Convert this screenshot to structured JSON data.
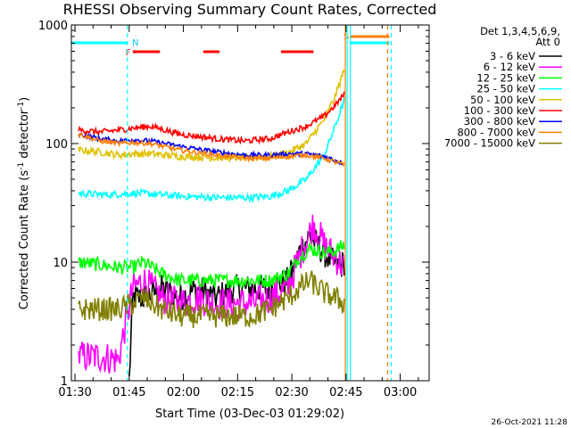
{
  "chart_data": {
    "type": "line",
    "title": "RHESSI Observing Summary Count Rates, Corrected",
    "xlabel": "Start Time (03-Dec-03 01:29:02)",
    "ylabel_main": "Corrected Count Rate (s",
    "ylabel_sup1": "-1",
    "ylabel_mid": " detector",
    "ylabel_sup2": "-1",
    "ylabel_end": ")",
    "yscale": "log",
    "ylim": [
      1,
      1000
    ],
    "xlim_minutes": [
      0,
      99
    ],
    "y_ticks": [
      {
        "value": 1,
        "label": "1"
      },
      {
        "value": 10,
        "label": "10"
      },
      {
        "value": 100,
        "label": "100"
      },
      {
        "value": 1000,
        "label": "1000"
      }
    ],
    "x_ticks": [
      {
        "minute": 1,
        "label": "01:30"
      },
      {
        "minute": 16,
        "label": "01:45"
      },
      {
        "minute": 31,
        "label": "02:00"
      },
      {
        "minute": 46,
        "label": "02:15"
      },
      {
        "minute": 61,
        "label": "02:30"
      },
      {
        "minute": 76,
        "label": "02:45"
      },
      {
        "minute": 91,
        "label": "03:00"
      }
    ],
    "legend_header": [
      "Det 1,3,4,5,6,9,",
      "Att 0"
    ],
    "series": [
      {
        "name": "3 - 6 keV",
        "color": "#000000",
        "points": [
          [
            16,
            1
          ],
          [
            17,
            5
          ],
          [
            20,
            5
          ],
          [
            25,
            6
          ],
          [
            30,
            5
          ],
          [
            35,
            6
          ],
          [
            40,
            5
          ],
          [
            45,
            6
          ],
          [
            50,
            6
          ],
          [
            55,
            6
          ],
          [
            60,
            7
          ],
          [
            63,
            12
          ],
          [
            66,
            17
          ],
          [
            68,
            14
          ],
          [
            71,
            11
          ],
          [
            74,
            9
          ],
          [
            75.5,
            10
          ]
        ]
      },
      {
        "name": "6 - 12 keV",
        "color": "#ff00ff",
        "points": [
          [
            2,
            1.6
          ],
          [
            8,
            1.6
          ],
          [
            13,
            1.5
          ],
          [
            15,
            3
          ],
          [
            17,
            6
          ],
          [
            20,
            7
          ],
          [
            25,
            5
          ],
          [
            30,
            4.5
          ],
          [
            35,
            5
          ],
          [
            40,
            4.5
          ],
          [
            45,
            4.5
          ],
          [
            50,
            4.5
          ],
          [
            55,
            5
          ],
          [
            60,
            6
          ],
          [
            63,
            11
          ],
          [
            67,
            21
          ],
          [
            70,
            14
          ],
          [
            73,
            11
          ],
          [
            75.5,
            9
          ]
        ]
      },
      {
        "name": "12 - 25 keV",
        "color": "#00ff00",
        "points": [
          [
            2,
            10
          ],
          [
            8,
            9.5
          ],
          [
            13,
            9
          ],
          [
            17,
            9
          ],
          [
            20,
            10
          ],
          [
            25,
            8
          ],
          [
            30,
            7
          ],
          [
            35,
            7
          ],
          [
            40,
            7
          ],
          [
            45,
            7
          ],
          [
            50,
            7
          ],
          [
            55,
            7
          ],
          [
            60,
            8
          ],
          [
            63,
            11
          ],
          [
            66,
            13
          ],
          [
            70,
            12
          ],
          [
            73,
            12.5
          ],
          [
            75.5,
            14
          ]
        ]
      },
      {
        "name": "25 - 50 keV",
        "color": "#00ffff",
        "points": [
          [
            2,
            38
          ],
          [
            10,
            37
          ],
          [
            16,
            38
          ],
          [
            20,
            38
          ],
          [
            30,
            36
          ],
          [
            40,
            35
          ],
          [
            50,
            35
          ],
          [
            55,
            36
          ],
          [
            60,
            40
          ],
          [
            65,
            50
          ],
          [
            70,
            80
          ],
          [
            73,
            140
          ],
          [
            75.5,
            230
          ]
        ]
      },
      {
        "name": "50 - 100 keV",
        "color": "#e0c000",
        "points": [
          [
            2,
            88
          ],
          [
            8,
            85
          ],
          [
            13,
            80
          ],
          [
            17,
            82
          ],
          [
            22,
            82
          ],
          [
            30,
            78
          ],
          [
            40,
            76
          ],
          [
            48,
            76
          ],
          [
            55,
            78
          ],
          [
            60,
            84
          ],
          [
            65,
            100
          ],
          [
            70,
            160
          ],
          [
            73,
            250
          ],
          [
            75.5,
            420
          ]
        ]
      },
      {
        "name": "100 - 300 keV",
        "color": "#ff0000",
        "points": [
          [
            2,
            130
          ],
          [
            8,
            125
          ],
          [
            13,
            130
          ],
          [
            17,
            135
          ],
          [
            22,
            140
          ],
          [
            30,
            120
          ],
          [
            40,
            110
          ],
          [
            48,
            105
          ],
          [
            55,
            110
          ],
          [
            60,
            125
          ],
          [
            65,
            140
          ],
          [
            70,
            170
          ],
          [
            73,
            210
          ],
          [
            75.5,
            260
          ]
        ]
      },
      {
        "name": "300 - 800 keV",
        "color": "#0000ff",
        "points": [
          [
            2,
            120
          ],
          [
            8,
            110
          ],
          [
            13,
            105
          ],
          [
            17,
            108
          ],
          [
            22,
            105
          ],
          [
            30,
            95
          ],
          [
            40,
            85
          ],
          [
            48,
            80
          ],
          [
            55,
            80
          ],
          [
            60,
            82
          ],
          [
            65,
            82
          ],
          [
            70,
            78
          ],
          [
            73,
            72
          ],
          [
            75.5,
            68
          ]
        ]
      },
      {
        "name": "800 - 7000 keV",
        "color": "#ff8000",
        "points": [
          [
            2,
            120
          ],
          [
            8,
            105
          ],
          [
            13,
            100
          ],
          [
            17,
            102
          ],
          [
            22,
            100
          ],
          [
            30,
            88
          ],
          [
            40,
            80
          ],
          [
            48,
            75
          ],
          [
            55,
            75
          ],
          [
            60,
            78
          ],
          [
            65,
            80
          ],
          [
            70,
            75
          ],
          [
            73,
            70
          ],
          [
            75.5,
            66
          ]
        ]
      },
      {
        "name": "7000 - 15000 keV",
        "color": "#808000",
        "points": [
          [
            2,
            4
          ],
          [
            8,
            4
          ],
          [
            13,
            4
          ],
          [
            17,
            4.5
          ],
          [
            20,
            5
          ],
          [
            25,
            4
          ],
          [
            30,
            3.5
          ],
          [
            35,
            3.5
          ],
          [
            40,
            3.5
          ],
          [
            45,
            3.5
          ],
          [
            50,
            3.5
          ],
          [
            55,
            4
          ],
          [
            60,
            5
          ],
          [
            63,
            6
          ],
          [
            66,
            7
          ],
          [
            70,
            5.5
          ],
          [
            73,
            5
          ],
          [
            75.5,
            4.5
          ]
        ]
      }
    ],
    "top_markers": {
      "F_label": "F",
      "N_label": "N",
      "S_label": "S",
      "flare_segments": [
        [
          17,
          24.5
        ],
        [
          36.5,
          41
        ],
        [
          58,
          67
        ]
      ],
      "night_segments": [
        [
          0,
          15.5
        ],
        [
          77,
          88
        ]
      ],
      "saa_segment": [
        77,
        88
      ]
    },
    "vertical_markers": [
      {
        "minute": 15.5,
        "color": "#00ffff",
        "style": "dashed"
      },
      {
        "minute": 76.3,
        "color": "#00ffff",
        "style": "solid"
      },
      {
        "minute": 77.2,
        "color": "#00ffff",
        "style": "solid"
      },
      {
        "minute": 75.8,
        "color": "#ff8000",
        "style": "solid"
      },
      {
        "minute": 87.5,
        "color": "#ff8000",
        "style": "dashed"
      },
      {
        "minute": 88.5,
        "color": "#00ffff",
        "style": "dashed"
      }
    ],
    "footer_date": "26-Oct-2021 11:28"
  }
}
